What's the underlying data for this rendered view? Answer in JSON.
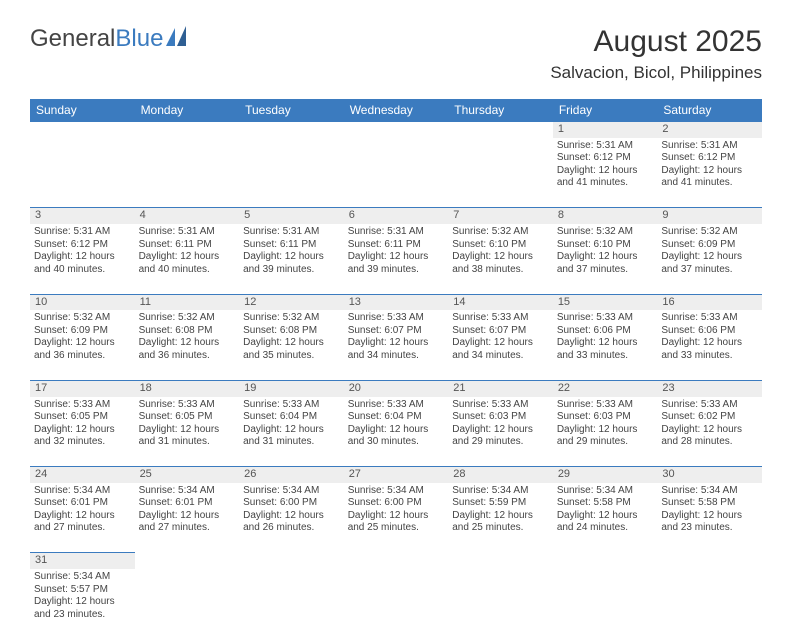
{
  "brand": {
    "general": "General",
    "blue": "Blue"
  },
  "header": {
    "title": "August 2025",
    "location": "Salvacion, Bicol, Philippines"
  },
  "columns": [
    "Sunday",
    "Monday",
    "Tuesday",
    "Wednesday",
    "Thursday",
    "Friday",
    "Saturday"
  ],
  "colors": {
    "accent": "#3b7bbf",
    "dayrow_bg": "#eeeeee",
    "text": "#333333"
  },
  "weeks": [
    {
      "nums": [
        "",
        "",
        "",
        "",
        "",
        "1",
        "2"
      ],
      "cells": [
        null,
        null,
        null,
        null,
        null,
        {
          "sr": "Sunrise: 5:31 AM",
          "ss": "Sunset: 6:12 PM",
          "d1": "Daylight: 12 hours",
          "d2": "and 41 minutes."
        },
        {
          "sr": "Sunrise: 5:31 AM",
          "ss": "Sunset: 6:12 PM",
          "d1": "Daylight: 12 hours",
          "d2": "and 41 minutes."
        }
      ]
    },
    {
      "nums": [
        "3",
        "4",
        "5",
        "6",
        "7",
        "8",
        "9"
      ],
      "cells": [
        {
          "sr": "Sunrise: 5:31 AM",
          "ss": "Sunset: 6:12 PM",
          "d1": "Daylight: 12 hours",
          "d2": "and 40 minutes."
        },
        {
          "sr": "Sunrise: 5:31 AM",
          "ss": "Sunset: 6:11 PM",
          "d1": "Daylight: 12 hours",
          "d2": "and 40 minutes."
        },
        {
          "sr": "Sunrise: 5:31 AM",
          "ss": "Sunset: 6:11 PM",
          "d1": "Daylight: 12 hours",
          "d2": "and 39 minutes."
        },
        {
          "sr": "Sunrise: 5:31 AM",
          "ss": "Sunset: 6:11 PM",
          "d1": "Daylight: 12 hours",
          "d2": "and 39 minutes."
        },
        {
          "sr": "Sunrise: 5:32 AM",
          "ss": "Sunset: 6:10 PM",
          "d1": "Daylight: 12 hours",
          "d2": "and 38 minutes."
        },
        {
          "sr": "Sunrise: 5:32 AM",
          "ss": "Sunset: 6:10 PM",
          "d1": "Daylight: 12 hours",
          "d2": "and 37 minutes."
        },
        {
          "sr": "Sunrise: 5:32 AM",
          "ss": "Sunset: 6:09 PM",
          "d1": "Daylight: 12 hours",
          "d2": "and 37 minutes."
        }
      ]
    },
    {
      "nums": [
        "10",
        "11",
        "12",
        "13",
        "14",
        "15",
        "16"
      ],
      "cells": [
        {
          "sr": "Sunrise: 5:32 AM",
          "ss": "Sunset: 6:09 PM",
          "d1": "Daylight: 12 hours",
          "d2": "and 36 minutes."
        },
        {
          "sr": "Sunrise: 5:32 AM",
          "ss": "Sunset: 6:08 PM",
          "d1": "Daylight: 12 hours",
          "d2": "and 36 minutes."
        },
        {
          "sr": "Sunrise: 5:32 AM",
          "ss": "Sunset: 6:08 PM",
          "d1": "Daylight: 12 hours",
          "d2": "and 35 minutes."
        },
        {
          "sr": "Sunrise: 5:33 AM",
          "ss": "Sunset: 6:07 PM",
          "d1": "Daylight: 12 hours",
          "d2": "and 34 minutes."
        },
        {
          "sr": "Sunrise: 5:33 AM",
          "ss": "Sunset: 6:07 PM",
          "d1": "Daylight: 12 hours",
          "d2": "and 34 minutes."
        },
        {
          "sr": "Sunrise: 5:33 AM",
          "ss": "Sunset: 6:06 PM",
          "d1": "Daylight: 12 hours",
          "d2": "and 33 minutes."
        },
        {
          "sr": "Sunrise: 5:33 AM",
          "ss": "Sunset: 6:06 PM",
          "d1": "Daylight: 12 hours",
          "d2": "and 33 minutes."
        }
      ]
    },
    {
      "nums": [
        "17",
        "18",
        "19",
        "20",
        "21",
        "22",
        "23"
      ],
      "cells": [
        {
          "sr": "Sunrise: 5:33 AM",
          "ss": "Sunset: 6:05 PM",
          "d1": "Daylight: 12 hours",
          "d2": "and 32 minutes."
        },
        {
          "sr": "Sunrise: 5:33 AM",
          "ss": "Sunset: 6:05 PM",
          "d1": "Daylight: 12 hours",
          "d2": "and 31 minutes."
        },
        {
          "sr": "Sunrise: 5:33 AM",
          "ss": "Sunset: 6:04 PM",
          "d1": "Daylight: 12 hours",
          "d2": "and 31 minutes."
        },
        {
          "sr": "Sunrise: 5:33 AM",
          "ss": "Sunset: 6:04 PM",
          "d1": "Daylight: 12 hours",
          "d2": "and 30 minutes."
        },
        {
          "sr": "Sunrise: 5:33 AM",
          "ss": "Sunset: 6:03 PM",
          "d1": "Daylight: 12 hours",
          "d2": "and 29 minutes."
        },
        {
          "sr": "Sunrise: 5:33 AM",
          "ss": "Sunset: 6:03 PM",
          "d1": "Daylight: 12 hours",
          "d2": "and 29 minutes."
        },
        {
          "sr": "Sunrise: 5:33 AM",
          "ss": "Sunset: 6:02 PM",
          "d1": "Daylight: 12 hours",
          "d2": "and 28 minutes."
        }
      ]
    },
    {
      "nums": [
        "24",
        "25",
        "26",
        "27",
        "28",
        "29",
        "30"
      ],
      "cells": [
        {
          "sr": "Sunrise: 5:34 AM",
          "ss": "Sunset: 6:01 PM",
          "d1": "Daylight: 12 hours",
          "d2": "and 27 minutes."
        },
        {
          "sr": "Sunrise: 5:34 AM",
          "ss": "Sunset: 6:01 PM",
          "d1": "Daylight: 12 hours",
          "d2": "and 27 minutes."
        },
        {
          "sr": "Sunrise: 5:34 AM",
          "ss": "Sunset: 6:00 PM",
          "d1": "Daylight: 12 hours",
          "d2": "and 26 minutes."
        },
        {
          "sr": "Sunrise: 5:34 AM",
          "ss": "Sunset: 6:00 PM",
          "d1": "Daylight: 12 hours",
          "d2": "and 25 minutes."
        },
        {
          "sr": "Sunrise: 5:34 AM",
          "ss": "Sunset: 5:59 PM",
          "d1": "Daylight: 12 hours",
          "d2": "and 25 minutes."
        },
        {
          "sr": "Sunrise: 5:34 AM",
          "ss": "Sunset: 5:58 PM",
          "d1": "Daylight: 12 hours",
          "d2": "and 24 minutes."
        },
        {
          "sr": "Sunrise: 5:34 AM",
          "ss": "Sunset: 5:58 PM",
          "d1": "Daylight: 12 hours",
          "d2": "and 23 minutes."
        }
      ]
    },
    {
      "nums": [
        "31",
        "",
        "",
        "",
        "",
        "",
        ""
      ],
      "cells": [
        {
          "sr": "Sunrise: 5:34 AM",
          "ss": "Sunset: 5:57 PM",
          "d1": "Daylight: 12 hours",
          "d2": "and 23 minutes."
        },
        null,
        null,
        null,
        null,
        null,
        null
      ]
    }
  ]
}
